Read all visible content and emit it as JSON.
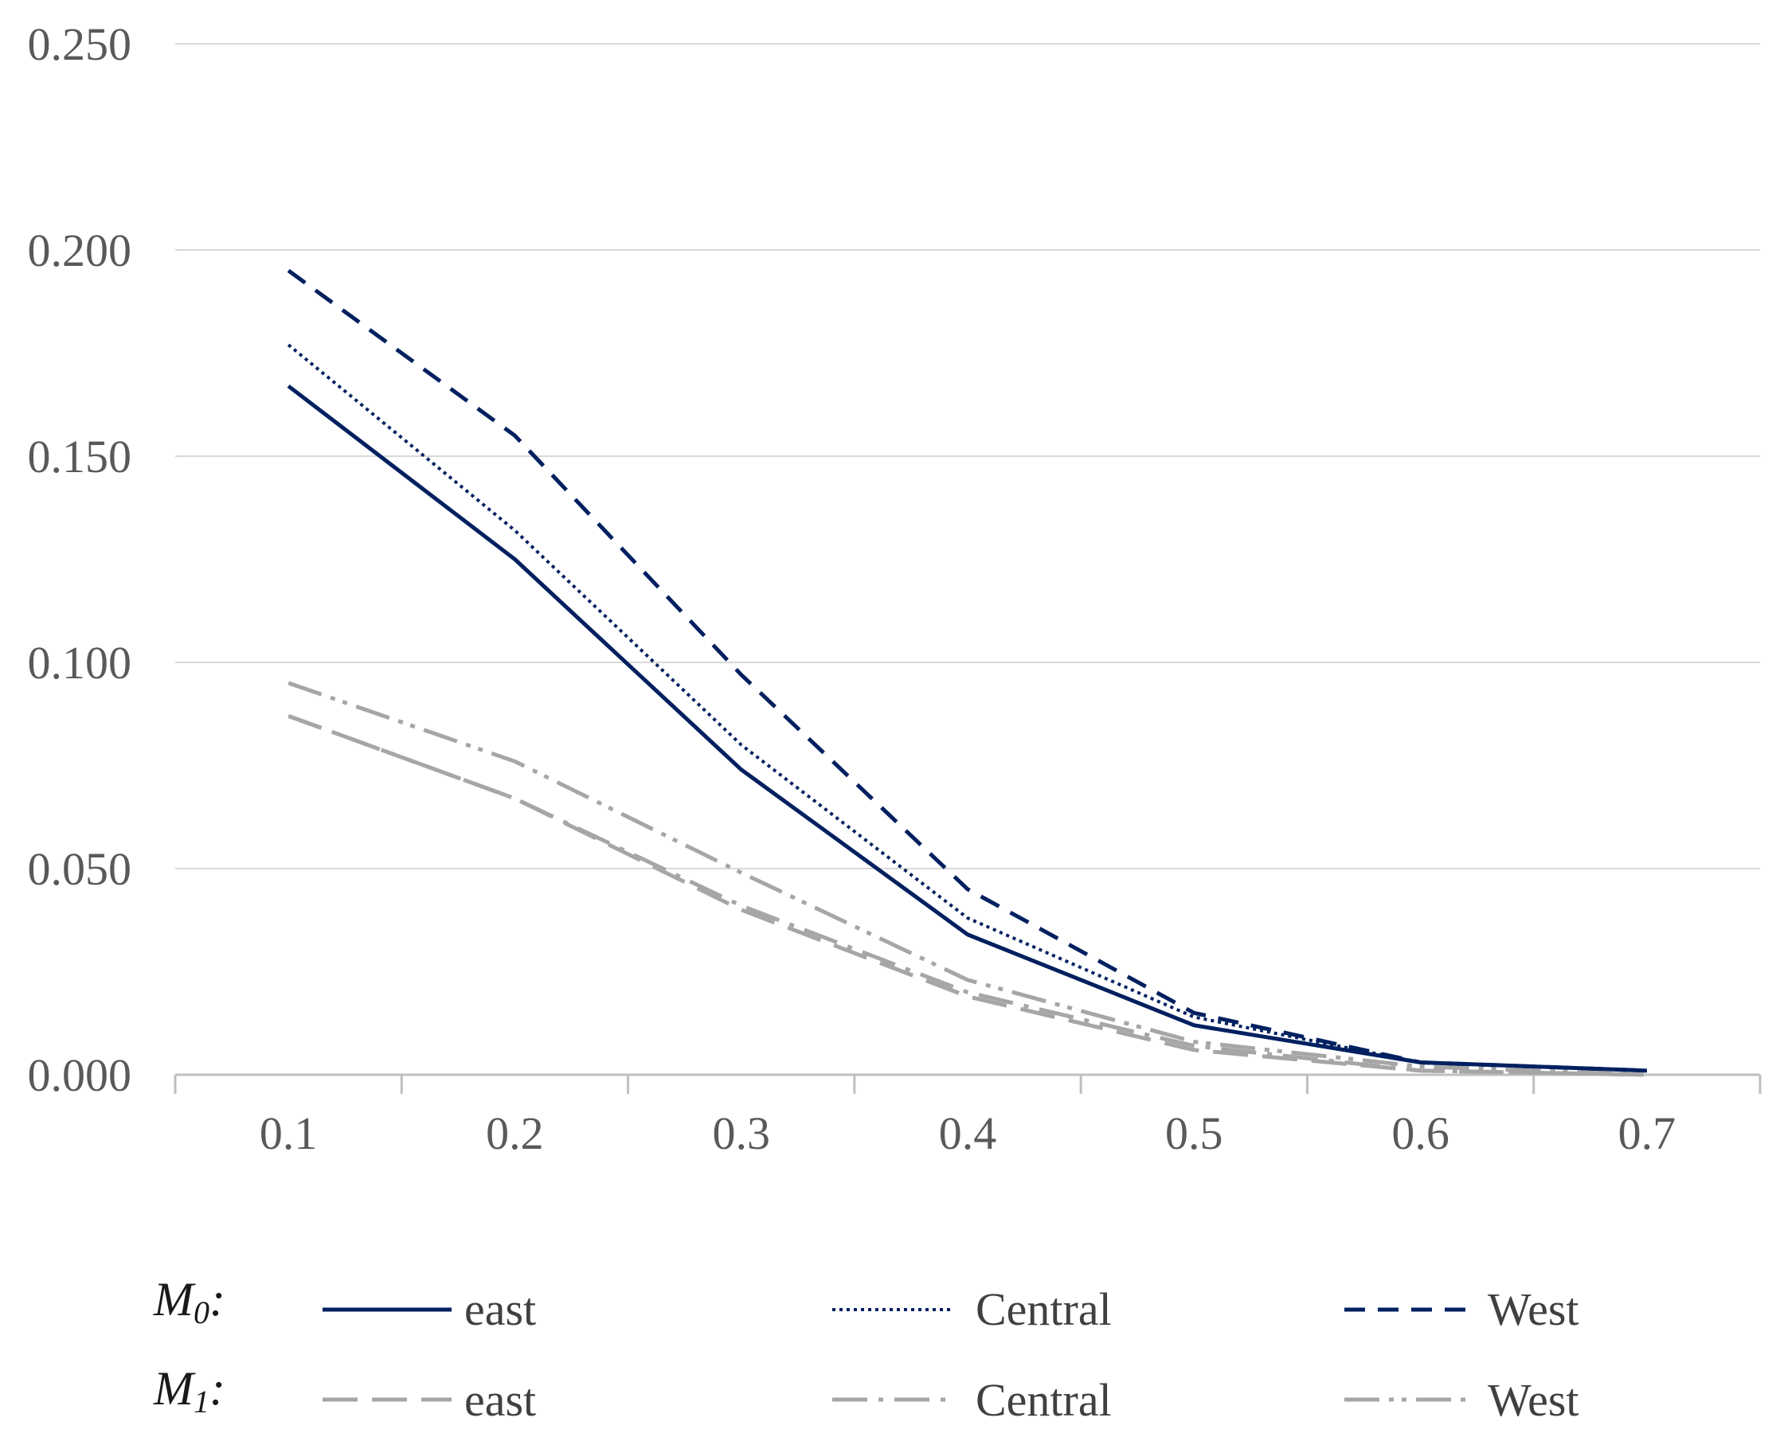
{
  "chart_data": {
    "type": "line",
    "title": "",
    "xlabel": "",
    "ylabel": "",
    "x": [
      0.1,
      0.2,
      0.3,
      0.4,
      0.5,
      0.6,
      0.7
    ],
    "x_tick_labels": [
      "0.1",
      "0.2",
      "0.3",
      "0.4",
      "0.5",
      "0.6",
      "0.7"
    ],
    "y_ticks": [
      0,
      0.05,
      0.1,
      0.15,
      0.2,
      0.25
    ],
    "y_tick_labels": [
      "0.000",
      "0.050",
      "0.100",
      "0.150",
      "0.200",
      "0.250"
    ],
    "ylim": [
      0,
      0.25
    ],
    "xlim": [
      0.05,
      0.75
    ],
    "grid": "horizontal",
    "legend_position": "bottom",
    "legend_groups": [
      {
        "label": "M0",
        "sub": "0",
        "main": "M",
        "suffix": ":"
      },
      {
        "label": "M1",
        "sub": "1",
        "main": "M",
        "suffix": ":"
      }
    ],
    "series": [
      {
        "name": "east",
        "group": "M0",
        "color": "#002060",
        "style": "solid",
        "values": [
          0.167,
          0.125,
          0.074,
          0.034,
          0.012,
          0.003,
          0.001
        ]
      },
      {
        "name": "Central",
        "group": "M0",
        "color": "#002060",
        "style": "dotted",
        "values": [
          0.177,
          0.132,
          0.08,
          0.038,
          0.014,
          0.003,
          0.001
        ]
      },
      {
        "name": "West",
        "group": "M0",
        "color": "#002060",
        "style": "dashed",
        "values": [
          0.195,
          0.155,
          0.097,
          0.045,
          0.015,
          0.003,
          0.001
        ]
      },
      {
        "name": "east",
        "group": "M1",
        "color": "#a6a6a6",
        "style": "longdash",
        "values": [
          0.087,
          0.067,
          0.04,
          0.019,
          0.006,
          0.001,
          0.0
        ]
      },
      {
        "name": "Central",
        "group": "M1",
        "color": "#a6a6a6",
        "style": "dashdot",
        "values": [
          0.087,
          0.067,
          0.041,
          0.02,
          0.007,
          0.001,
          0.0
        ]
      },
      {
        "name": "West",
        "group": "M1",
        "color": "#a6a6a6",
        "style": "dashdotdot",
        "values": [
          0.095,
          0.076,
          0.049,
          0.023,
          0.008,
          0.002,
          0.0
        ]
      }
    ]
  }
}
